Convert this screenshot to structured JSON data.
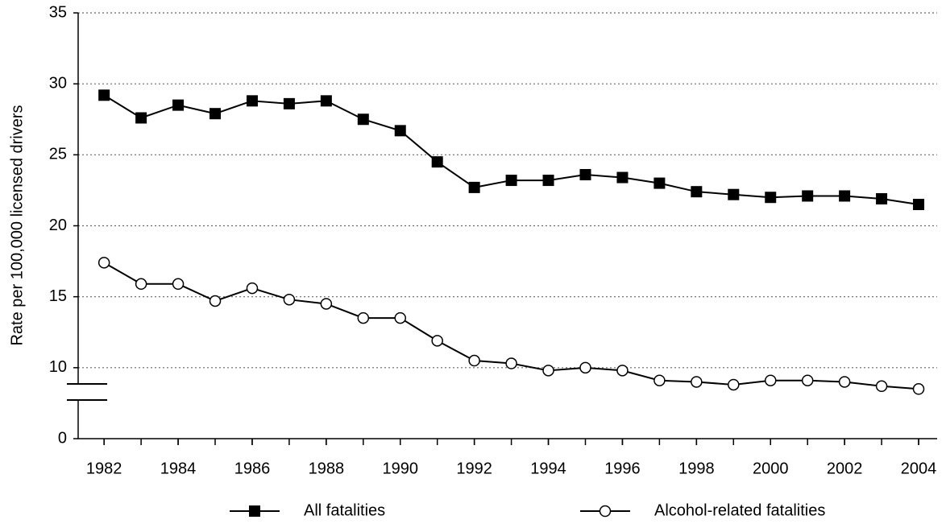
{
  "chart_data": {
    "type": "line",
    "y_label": "Rate per 100,000 licensed drivers",
    "x": [
      1982,
      1983,
      1984,
      1985,
      1986,
      1987,
      1988,
      1989,
      1990,
      1991,
      1992,
      1993,
      1994,
      1995,
      1996,
      1997,
      1998,
      1999,
      2000,
      2001,
      2002,
      2003,
      2004
    ],
    "series": [
      {
        "name": "All fatalities",
        "color": "#000000",
        "marker": "square",
        "values": [
          29.2,
          27.6,
          28.5,
          27.9,
          28.8,
          28.6,
          28.8,
          27.5,
          26.7,
          24.5,
          22.7,
          23.2,
          23.2,
          23.6,
          23.4,
          23.0,
          22.4,
          22.2,
          22.0,
          22.1,
          22.1,
          21.9,
          21.5
        ]
      },
      {
        "name": "Alcohol-related fatalities",
        "color": "#000000",
        "marker": "circle",
        "values": [
          17.4,
          15.9,
          15.9,
          14.7,
          15.6,
          14.8,
          14.5,
          13.5,
          13.5,
          11.9,
          10.5,
          10.3,
          9.8,
          10.0,
          9.8,
          9.1,
          9.0,
          8.8,
          9.1,
          9.1,
          9.0,
          8.7,
          8.5
        ]
      }
    ],
    "xlim": [
      1981.3,
      2004.5
    ],
    "xticks": [
      1982,
      1984,
      1986,
      1988,
      1990,
      1992,
      1994,
      1996,
      1998,
      2000,
      2002,
      2004
    ],
    "ylim": [
      0,
      35
    ],
    "yticks": [
      0,
      10,
      15,
      20,
      25,
      30,
      35
    ],
    "y_axis_break": true,
    "grid": true,
    "legend": "bottom"
  }
}
